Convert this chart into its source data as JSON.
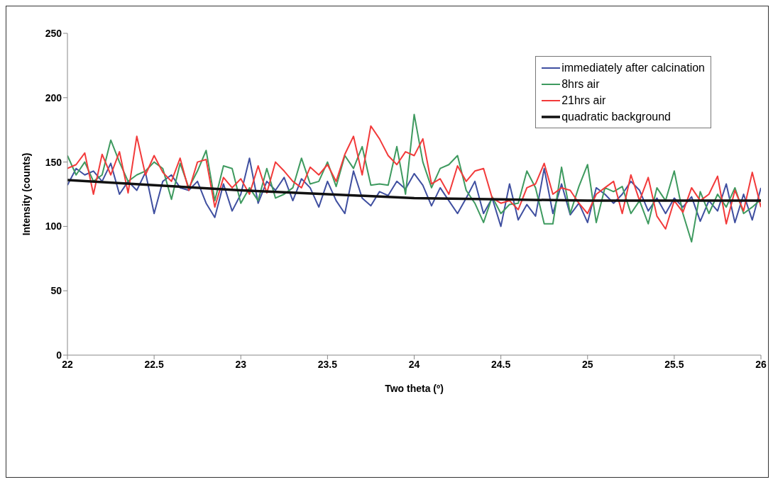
{
  "chart_data": {
    "type": "line",
    "xlabel": "Two theta (º)",
    "ylabel": "Intensity (counts)",
    "x": [
      22,
      22.05,
      22.1,
      22.15,
      22.2,
      22.25,
      22.3,
      22.35,
      22.4,
      22.45,
      22.5,
      22.55,
      22.6,
      22.65,
      22.7,
      22.75,
      22.8,
      22.85,
      22.9,
      22.95,
      23,
      23.05,
      23.1,
      23.15,
      23.2,
      23.25,
      23.3,
      23.35,
      23.4,
      23.45,
      23.5,
      23.55,
      23.6,
      23.65,
      23.7,
      23.75,
      23.8,
      23.85,
      23.9,
      23.95,
      24,
      24.05,
      24.1,
      24.15,
      24.2,
      24.25,
      24.3,
      24.35,
      24.4,
      24.45,
      24.5,
      24.55,
      24.6,
      24.65,
      24.7,
      24.75,
      24.8,
      24.85,
      24.9,
      24.95,
      25,
      25.05,
      25.1,
      25.15,
      25.2,
      25.25,
      25.3,
      25.35,
      25.4,
      25.45,
      25.5,
      25.55,
      25.6,
      25.65,
      25.7,
      25.75,
      25.8,
      25.85,
      25.9,
      25.95,
      26
    ],
    "series": [
      {
        "name": "immediately after calcination",
        "color": "#3f4fa0",
        "values": [
          132,
          145,
          140,
          143,
          135,
          149,
          125,
          135,
          128,
          142,
          110,
          135,
          140,
          130,
          128,
          135,
          118,
          107,
          133,
          112,
          125,
          153,
          118,
          135,
          128,
          138,
          120,
          137,
          130,
          115,
          135,
          120,
          110,
          143,
          122,
          116,
          127,
          124,
          135,
          129,
          141,
          132,
          116,
          130,
          120,
          110,
          122,
          135,
          110,
          122,
          100,
          133,
          105,
          117,
          108,
          145,
          110,
          133,
          109,
          118,
          103,
          130,
          125,
          118,
          125,
          135,
          128,
          112,
          122,
          110,
          122,
          115,
          123,
          104,
          120,
          112,
          133,
          103,
          125,
          105,
          130
        ]
      },
      {
        "name": "8hrs air",
        "color": "#3e9a5f",
        "values": [
          155,
          140,
          150,
          135,
          140,
          167,
          150,
          135,
          140,
          143,
          150,
          145,
          121,
          149,
          130,
          143,
          159,
          120,
          147,
          145,
          118,
          130,
          120,
          145,
          122,
          125,
          130,
          153,
          133,
          135,
          150,
          131,
          155,
          145,
          162,
          132,
          133,
          132,
          162,
          125,
          187,
          150,
          130,
          145,
          148,
          155,
          128,
          118,
          103,
          123,
          110,
          117,
          118,
          143,
          130,
          102,
          102,
          146,
          110,
          131,
          148,
          103,
          130,
          127,
          131,
          110,
          120,
          102,
          130,
          120,
          143,
          110,
          88,
          127,
          110,
          125,
          115,
          130,
          110,
          115,
          121
        ]
      },
      {
        "name": "21hrs air",
        "color": "#f23a3a",
        "values": [
          145,
          148,
          157,
          125,
          156,
          140,
          158,
          126,
          170,
          140,
          155,
          142,
          135,
          153,
          128,
          150,
          152,
          115,
          138,
          130,
          137,
          125,
          147,
          126,
          150,
          143,
          135,
          130,
          146,
          140,
          148,
          135,
          156,
          170,
          140,
          178,
          168,
          155,
          148,
          158,
          155,
          168,
          133,
          137,
          125,
          147,
          135,
          143,
          145,
          122,
          118,
          120,
          113,
          130,
          133,
          149,
          125,
          130,
          128,
          118,
          110,
          125,
          130,
          135,
          110,
          140,
          120,
          138,
          108,
          98,
          120,
          111,
          130,
          120,
          125,
          139,
          102,
          128,
          112,
          142,
          115
        ]
      },
      {
        "name": "quadratic background",
        "color": "#111111",
        "x": [
          22,
          22.5,
          23,
          23.5,
          24,
          24.5,
          25,
          25.5,
          26
        ],
        "values": [
          136,
          132,
          128,
          125,
          122,
          121,
          120,
          120,
          120
        ]
      }
    ],
    "xlim": [
      22,
      26
    ],
    "xticks": [
      22,
      22.5,
      23,
      23.5,
      24,
      24.5,
      25,
      25.5,
      26
    ],
    "ylim": [
      0,
      250
    ],
    "yticks": [
      0,
      50,
      100,
      150,
      200,
      250
    ],
    "grid": false,
    "legend": "top right",
    "marker": "none",
    "line_style": "solid"
  }
}
